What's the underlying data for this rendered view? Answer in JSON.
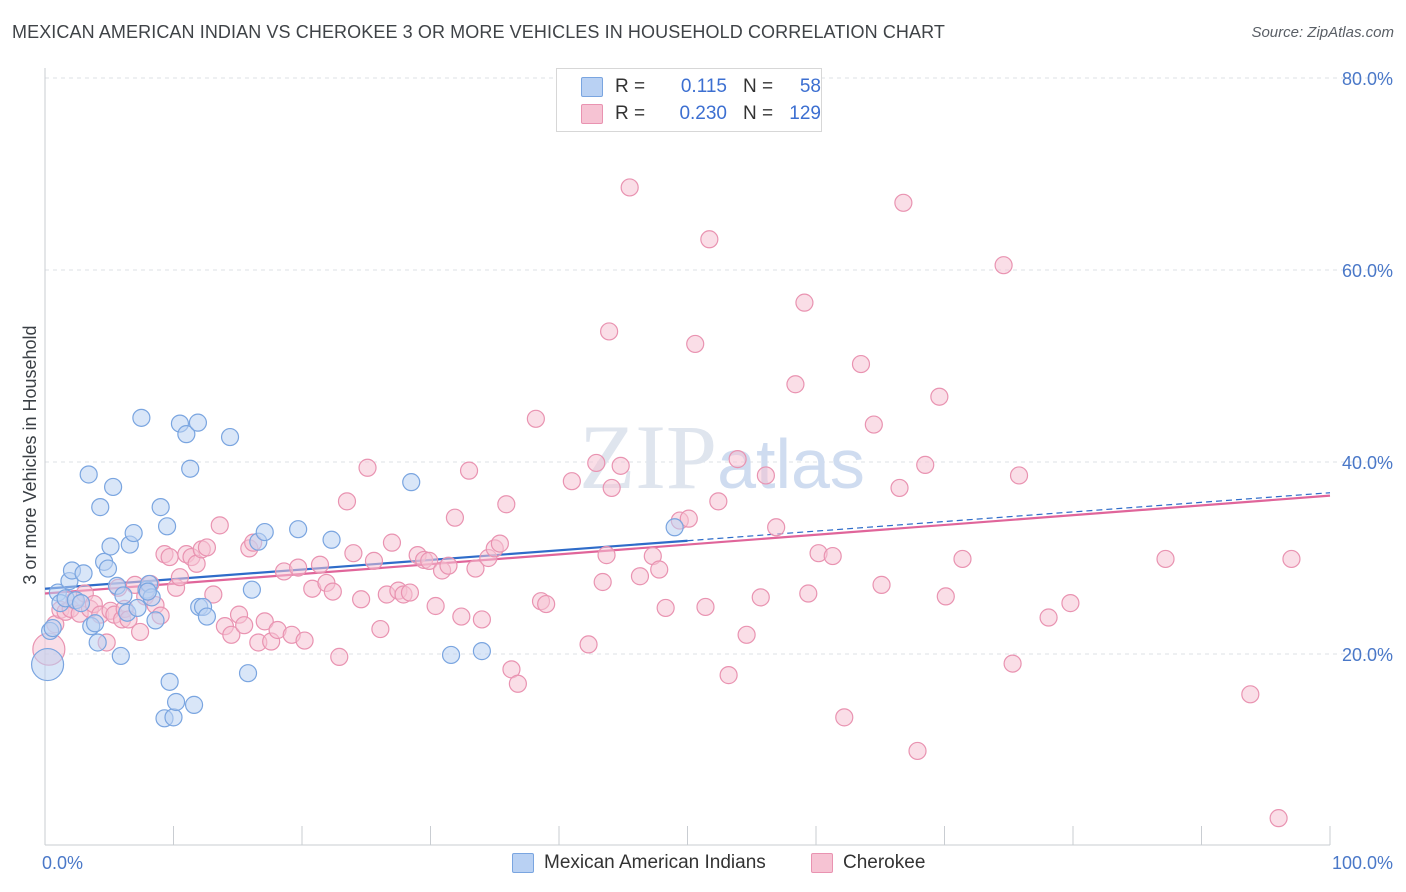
{
  "title": "MEXICAN AMERICAN INDIAN VS CHEROKEE 3 OR MORE VEHICLES IN HOUSEHOLD CORRELATION CHART",
  "source": "Source: ZipAtlas.com",
  "watermark": "ZIPatlas",
  "legend": {
    "rows": [
      {
        "r_label": "R =",
        "r_value": "0.115",
        "n_label": "N =",
        "n_value": "58"
      },
      {
        "r_label": "R =",
        "r_value": "0.230",
        "n_label": "N =",
        "n_value": "129"
      }
    ],
    "bottom": [
      "Mexican American Indians",
      "Cherokee"
    ]
  },
  "colors": {
    "blue_fill": "#b9d1f3",
    "blue_stroke": "#7aa5e0",
    "blue_line": "#2f6cc9",
    "pink_fill": "#f6c3d3",
    "pink_stroke": "#e993b1",
    "pink_line": "#e0659a",
    "tick_text": "#4a78c8",
    "grid": "#dde1e6"
  },
  "chart_data": {
    "type": "scatter",
    "title": "MEXICAN AMERICAN INDIAN VS CHEROKEE 3 OR MORE VEHICLES IN HOUSEHOLD CORRELATION CHART",
    "xlabel": "",
    "ylabel": "3 or more Vehicles in Household",
    "xlim": [
      0,
      100
    ],
    "ylim": [
      0,
      85
    ],
    "x_ticks": [
      "0.0%",
      "100.0%"
    ],
    "y_ticks": [
      {
        "v": 20,
        "label": "20.0%"
      },
      {
        "v": 40,
        "label": "40.0%"
      },
      {
        "v": 60,
        "label": "60.0%"
      },
      {
        "v": 80,
        "label": "80.0%"
      }
    ],
    "grid": "horizontal dashed",
    "series": [
      {
        "name": "Mexican American Indians",
        "color": "blue",
        "trend": {
          "x0": 0,
          "y0": 26.8,
          "x1": 50,
          "y1": 31.8,
          "dash_to_x": 100,
          "dash_to_y": 36.8
        },
        "points": [
          [
            0.2,
            18.9
          ],
          [
            0.4,
            22.4
          ],
          [
            0.6,
            22.7
          ],
          [
            1.0,
            26.4
          ],
          [
            1.2,
            25.3
          ],
          [
            1.6,
            25.8
          ],
          [
            1.9,
            27.6
          ],
          [
            2.1,
            28.7
          ],
          [
            2.4,
            25.6
          ],
          [
            2.8,
            25.3
          ],
          [
            3.0,
            28.4
          ],
          [
            3.4,
            38.7
          ],
          [
            3.6,
            22.9
          ],
          [
            3.9,
            23.2
          ],
          [
            4.1,
            21.2
          ],
          [
            4.3,
            35.3
          ],
          [
            4.6,
            29.6
          ],
          [
            4.9,
            28.9
          ],
          [
            5.1,
            31.2
          ],
          [
            5.3,
            37.4
          ],
          [
            5.6,
            27.1
          ],
          [
            5.9,
            19.8
          ],
          [
            6.1,
            26.1
          ],
          [
            6.4,
            24.3
          ],
          [
            6.6,
            31.4
          ],
          [
            6.9,
            32.6
          ],
          [
            7.2,
            24.8
          ],
          [
            7.5,
            44.6
          ],
          [
            7.9,
            26.7
          ],
          [
            8.1,
            27.3
          ],
          [
            8.3,
            25.9
          ],
          [
            8.6,
            23.5
          ],
          [
            9.0,
            35.3
          ],
          [
            9.3,
            13.3
          ],
          [
            9.5,
            33.3
          ],
          [
            9.7,
            17.1
          ],
          [
            10.0,
            13.4
          ],
          [
            10.2,
            15.0
          ],
          [
            10.5,
            44.0
          ],
          [
            11.0,
            42.9
          ],
          [
            11.3,
            39.3
          ],
          [
            11.6,
            14.7
          ],
          [
            12.0,
            24.9
          ],
          [
            12.3,
            24.9
          ],
          [
            12.6,
            23.9
          ],
          [
            11.9,
            44.1
          ],
          [
            14.4,
            42.6
          ],
          [
            15.8,
            18.0
          ],
          [
            16.1,
            26.7
          ],
          [
            16.6,
            31.7
          ],
          [
            17.1,
            32.7
          ],
          [
            19.7,
            33.0
          ],
          [
            22.3,
            31.9
          ],
          [
            28.5,
            37.9
          ],
          [
            31.6,
            19.9
          ],
          [
            34.0,
            20.3
          ],
          [
            49.0,
            33.2
          ],
          [
            8.0,
            26.5
          ]
        ]
      },
      {
        "name": "Cherokee",
        "color": "pink",
        "trend": {
          "x0": 0,
          "y0": 26.3,
          "x1": 100,
          "y1": 36.5
        },
        "points": [
          [
            0.3,
            20.5
          ],
          [
            0.8,
            23.1
          ],
          [
            1.2,
            24.6
          ],
          [
            1.6,
            24.4
          ],
          [
            2.0,
            24.7
          ],
          [
            2.3,
            25.6
          ],
          [
            2.7,
            24.2
          ],
          [
            3.1,
            26.3
          ],
          [
            3.5,
            24.7
          ],
          [
            3.8,
            25.2
          ],
          [
            4.3,
            24.1
          ],
          [
            4.8,
            21.2
          ],
          [
            5.1,
            24.5
          ],
          [
            5.4,
            24.1
          ],
          [
            5.7,
            26.9
          ],
          [
            6.0,
            23.6
          ],
          [
            6.2,
            24.7
          ],
          [
            6.5,
            23.6
          ],
          [
            7.0,
            27.2
          ],
          [
            7.4,
            22.3
          ],
          [
            7.8,
            26.0
          ],
          [
            8.2,
            27.3
          ],
          [
            8.6,
            25.1
          ],
          [
            9.0,
            24.0
          ],
          [
            9.3,
            30.4
          ],
          [
            9.7,
            30.1
          ],
          [
            10.2,
            26.9
          ],
          [
            10.5,
            28.0
          ],
          [
            11.0,
            30.4
          ],
          [
            11.4,
            30.1
          ],
          [
            11.8,
            29.4
          ],
          [
            12.2,
            30.9
          ],
          [
            12.6,
            31.1
          ],
          [
            13.1,
            26.2
          ],
          [
            13.6,
            33.4
          ],
          [
            14.0,
            22.9
          ],
          [
            14.5,
            22.0
          ],
          [
            15.1,
            24.1
          ],
          [
            15.5,
            23.0
          ],
          [
            15.9,
            31.0
          ],
          [
            16.2,
            31.6
          ],
          [
            16.6,
            21.2
          ],
          [
            17.1,
            23.4
          ],
          [
            17.6,
            21.3
          ],
          [
            18.1,
            22.5
          ],
          [
            18.6,
            28.6
          ],
          [
            19.2,
            22.0
          ],
          [
            19.7,
            29.0
          ],
          [
            20.2,
            21.4
          ],
          [
            20.8,
            26.8
          ],
          [
            21.4,
            29.3
          ],
          [
            21.9,
            27.4
          ],
          [
            22.4,
            26.5
          ],
          [
            22.9,
            19.7
          ],
          [
            23.5,
            35.9
          ],
          [
            24.0,
            30.5
          ],
          [
            24.6,
            25.7
          ],
          [
            25.1,
            39.4
          ],
          [
            25.6,
            29.7
          ],
          [
            26.1,
            22.6
          ],
          [
            26.6,
            26.2
          ],
          [
            27.0,
            31.6
          ],
          [
            27.5,
            26.6
          ],
          [
            27.9,
            26.2
          ],
          [
            28.4,
            26.4
          ],
          [
            29.0,
            30.3
          ],
          [
            29.5,
            29.8
          ],
          [
            29.9,
            29.7
          ],
          [
            30.4,
            25.0
          ],
          [
            30.9,
            28.7
          ],
          [
            31.4,
            29.2
          ],
          [
            31.9,
            34.2
          ],
          [
            32.4,
            23.9
          ],
          [
            33.0,
            39.1
          ],
          [
            33.5,
            28.9
          ],
          [
            34.0,
            23.6
          ],
          [
            34.5,
            30.0
          ],
          [
            35.0,
            31.0
          ],
          [
            35.4,
            31.5
          ],
          [
            35.9,
            35.6
          ],
          [
            36.3,
            18.4
          ],
          [
            36.8,
            16.9
          ],
          [
            38.2,
            44.5
          ],
          [
            38.6,
            25.5
          ],
          [
            39.0,
            25.2
          ],
          [
            41.0,
            38.0
          ],
          [
            42.3,
            21.0
          ],
          [
            42.9,
            39.9
          ],
          [
            43.4,
            27.5
          ],
          [
            43.7,
            30.3
          ],
          [
            44.1,
            37.3
          ],
          [
            44.8,
            39.6
          ],
          [
            43.9,
            53.6
          ],
          [
            45.5,
            68.6
          ],
          [
            46.3,
            28.1
          ],
          [
            47.3,
            30.2
          ],
          [
            47.8,
            28.8
          ],
          [
            48.3,
            24.8
          ],
          [
            49.4,
            33.9
          ],
          [
            50.1,
            34.1
          ],
          [
            50.6,
            52.3
          ],
          [
            51.4,
            24.9
          ],
          [
            51.7,
            63.2
          ],
          [
            52.4,
            35.9
          ],
          [
            53.2,
            17.8
          ],
          [
            53.9,
            40.3
          ],
          [
            54.6,
            22.0
          ],
          [
            55.7,
            25.9
          ],
          [
            56.1,
            38.6
          ],
          [
            56.9,
            33.2
          ],
          [
            58.4,
            48.1
          ],
          [
            59.1,
            56.6
          ],
          [
            59.4,
            26.3
          ],
          [
            60.2,
            30.5
          ],
          [
            61.3,
            30.2
          ],
          [
            62.2,
            13.4
          ],
          [
            63.5,
            50.2
          ],
          [
            64.5,
            43.9
          ],
          [
            65.1,
            27.2
          ],
          [
            66.5,
            37.3
          ],
          [
            66.8,
            67.0
          ],
          [
            67.9,
            9.9
          ],
          [
            68.5,
            39.7
          ],
          [
            69.6,
            46.8
          ],
          [
            70.1,
            26.0
          ],
          [
            71.4,
            29.9
          ],
          [
            74.6,
            60.5
          ],
          [
            75.3,
            19.0
          ],
          [
            75.8,
            38.6
          ],
          [
            78.1,
            23.8
          ],
          [
            79.8,
            25.3
          ],
          [
            87.2,
            29.9
          ],
          [
            93.8,
            15.8
          ],
          [
            96.0,
            2.9
          ],
          [
            97.0,
            29.9
          ]
        ]
      }
    ]
  }
}
